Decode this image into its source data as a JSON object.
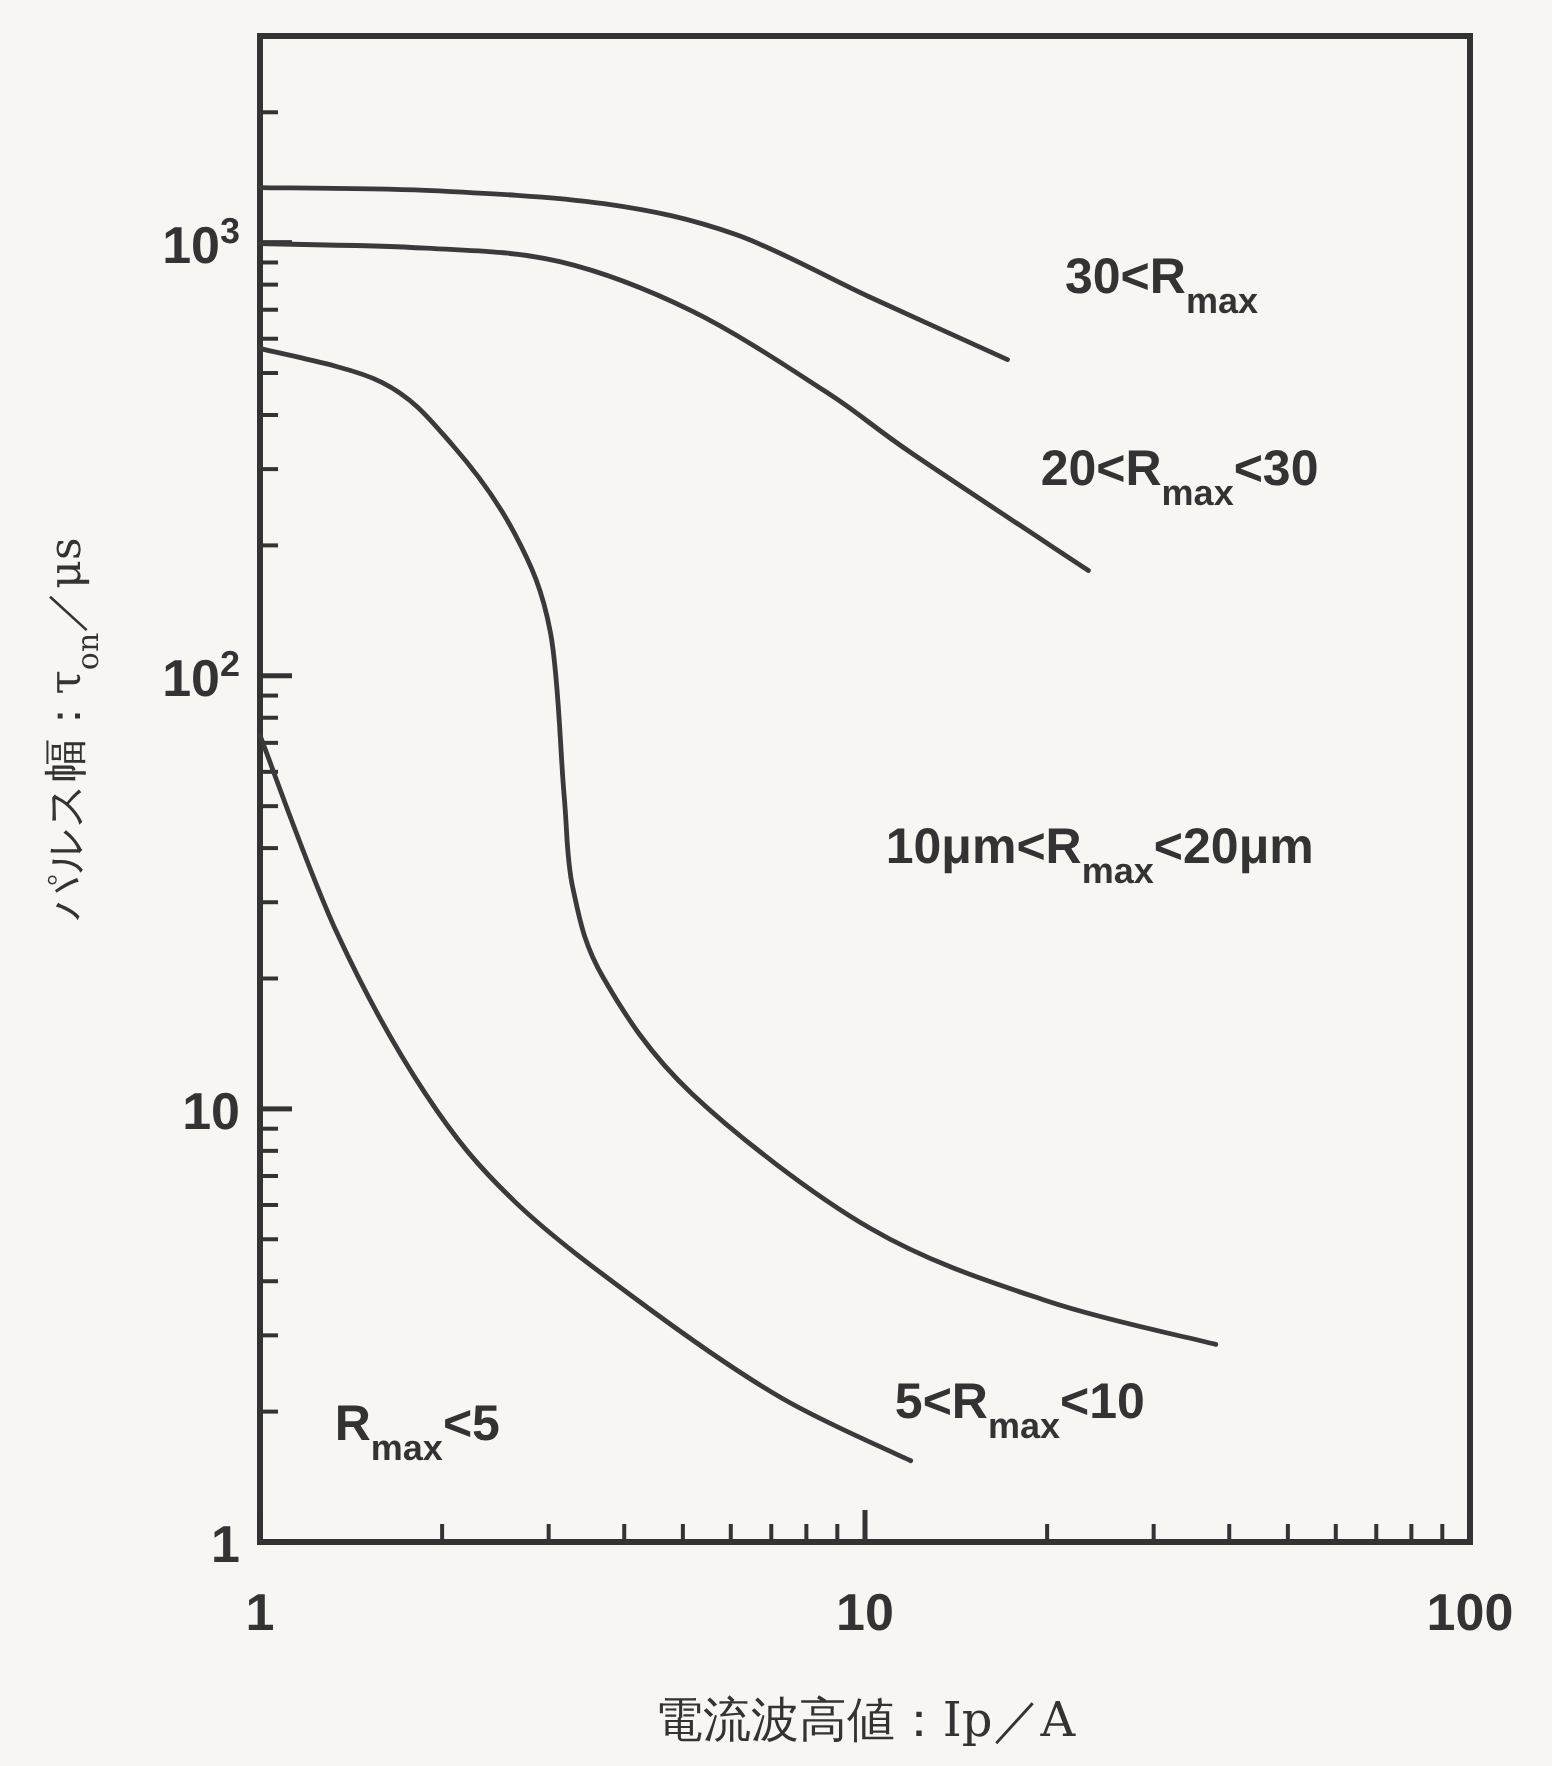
{
  "chart_data": {
    "type": "line",
    "log": "xy",
    "xlabel": "電流波高値：Ip／A",
    "ylabel": "パルス幅：τ$_{on}$／μs",
    "xlim": [
      1,
      100
    ],
    "ylim": [
      1,
      3000
    ],
    "xticks": [
      1,
      10,
      100
    ],
    "yticks": [
      1,
      10,
      {
        "value": 100,
        "label": "10$^{2}$"
      },
      {
        "value": 1000,
        "label": "10$^{3}$"
      }
    ],
    "series": [
      {
        "color": "#3a3a3a",
        "x": [
          1.0,
          1.88,
          3.7,
          6.1,
          10.2,
          17.2
        ],
        "values": [
          1340,
          1320,
          1230,
          1045,
          748,
          537
        ]
      },
      {
        "color": "#3a3a3a",
        "x": [
          1.0,
          1.88,
          3.13,
          5.18,
          8.63,
          12.0,
          23.4
        ],
        "values": [
          995,
          971,
          904,
          695,
          452,
          325,
          175
        ]
      },
      {
        "color": "#3a3a3a",
        "x": [
          1.0,
          1.59,
          2.08,
          2.64,
          3.02,
          3.18,
          3.29,
          3.7,
          5.19,
          10.2,
          20,
          38
        ],
        "values": [
          570,
          476,
          341,
          212,
          126,
          53.5,
          32.3,
          20,
          10.8,
          5.3,
          3.6,
          2.86
        ]
      },
      {
        "color": "#3a3a3a",
        "x": [
          1.0,
          1.34,
          1.88,
          2.64,
          4.38,
          7.28,
          11.9
        ],
        "values": [
          72.8,
          25.5,
          10.8,
          6.1,
          3.47,
          2.15,
          1.54
        ]
      }
    ],
    "annotations": [
      "30<R$_{max}$",
      "20<R$_{max}$<30",
      "10μm<R$_{max}$<20μm",
      "5<R$_{max}$<10",
      "R$_{max}$<5"
    ]
  }
}
